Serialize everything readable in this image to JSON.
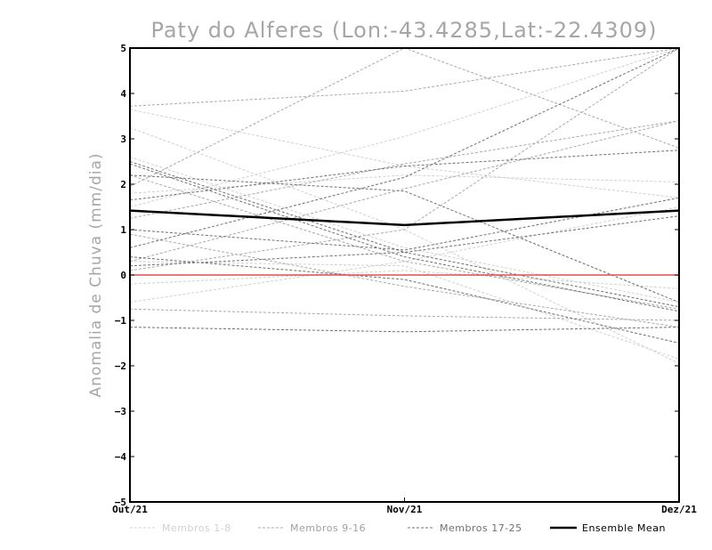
{
  "chart_data": {
    "type": "line",
    "title": "Paty do Alferes (Lon:-43.4285,Lat:-22.4309)",
    "xlabel": "",
    "ylabel": "Anomalia de Chuva (mm/dia)",
    "categories": [
      "Out/21",
      "Nov/21",
      "Dez/21"
    ],
    "ylim": [
      -5,
      5
    ],
    "yticks": [
      "5",
      "4",
      "3",
      "2",
      "1",
      "0",
      "-1",
      "-2",
      "-3",
      "-4",
      "-5"
    ],
    "zero_line_color": "#e84a4a",
    "series_groups": [
      {
        "name": "Membros 1-8",
        "color": "#d0d0d0",
        "members": [
          [
            3.65,
            2.4,
            1.7
          ],
          [
            3.25,
            1.0,
            -1.95
          ],
          [
            2.6,
            0.6,
            -0.6
          ],
          [
            1.5,
            3.05,
            5.3
          ],
          [
            0.3,
            0.2,
            -1.85
          ],
          [
            -0.2,
            0.1,
            -0.3
          ],
          [
            -0.6,
            0.3,
            1.5
          ],
          [
            1.8,
            2.2,
            2.05
          ]
        ]
      },
      {
        "name": "Membros 9-16",
        "color": "#a9a9a9",
        "members": [
          [
            3.72,
            4.05,
            5.3
          ],
          [
            2.2,
            0.3,
            -0.75
          ],
          [
            1.25,
            2.45,
            3.4
          ],
          [
            0.9,
            -0.25,
            -1.15
          ],
          [
            -0.75,
            -0.9,
            -1.0
          ],
          [
            0.1,
            1.0,
            5.3
          ],
          [
            1.95,
            5.1,
            2.8
          ],
          [
            0.3,
            1.9,
            3.4
          ]
        ]
      },
      {
        "name": "Membros 17-25",
        "color": "#707070",
        "members": [
          [
            2.5,
            0.5,
            -0.7
          ],
          [
            2.45,
            0.4,
            -0.8
          ],
          [
            2.2,
            1.85,
            -0.6
          ],
          [
            1.65,
            2.4,
            2.75
          ],
          [
            1.0,
            0.55,
            1.7
          ],
          [
            0.4,
            -0.1,
            -1.5
          ],
          [
            -1.15,
            -1.25,
            -1.15
          ],
          [
            0.6,
            2.15,
            5.1
          ],
          [
            0.2,
            0.5,
            1.3
          ]
        ]
      }
    ],
    "ensemble_mean": {
      "name": "Ensemble Mean",
      "color": "#000000",
      "values": [
        1.42,
        1.1,
        1.42
      ]
    },
    "legend": {
      "placement": "bottom",
      "entries": [
        "Membros 1-8",
        "Membros 9-16",
        "Membros 17-25",
        "Ensemble Mean"
      ]
    }
  }
}
